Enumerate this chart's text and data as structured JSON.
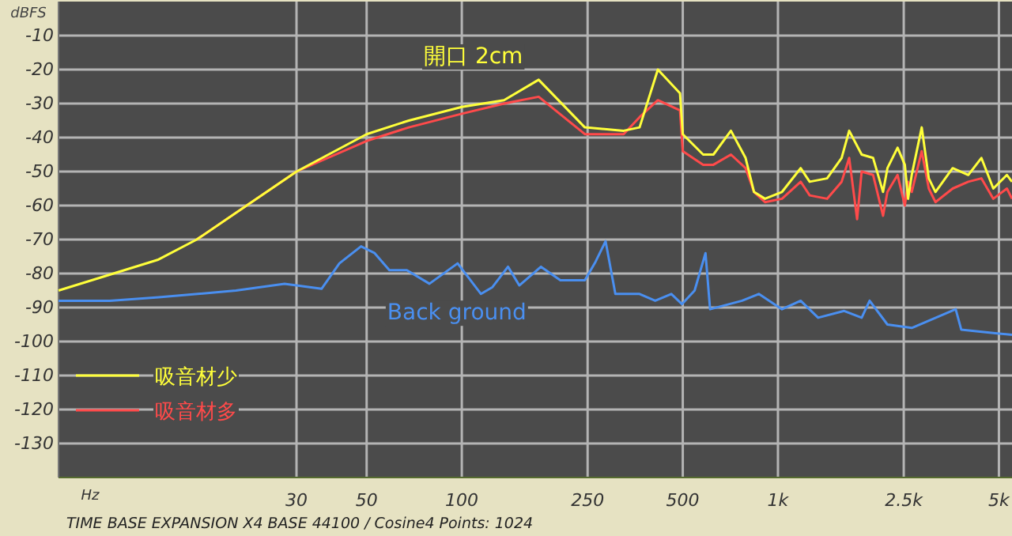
{
  "chart_data": {
    "type": "line",
    "xlabel": "Hz",
    "ylabel": "dBFS",
    "log": "x",
    "grid": true,
    "legend": "bottom left",
    "marker": "none",
    "line_style": "solid",
    "xlim": [
      5.3,
      5500
    ],
    "ylim": [
      -140,
      0
    ],
    "xticks": [
      30,
      50,
      100,
      250,
      500,
      {
        "value": 1000,
        "label": "1k"
      },
      {
        "value": 2500,
        "label": "2.5k"
      },
      {
        "value": 5000,
        "label": "5k"
      }
    ],
    "yticks": [
      -130,
      -120,
      -110,
      -100,
      -90,
      -80,
      -70,
      -60,
      -50,
      -40,
      -30,
      -20,
      -10
    ],
    "annotations": [
      "開口 2cm",
      "TIME BASE EXPANSION X4   BASE 44100 / Cosine4   Points: 1024"
    ],
    "series": [
      {
        "name": "吸音材多",
        "color": "#ff4a4a",
        "x": [
          14.5,
          30,
          50,
          68,
          100,
          136,
          175,
          245,
          325,
          365,
          417,
          490,
          500,
          580,
          625,
          710,
          790,
          840,
          910,
          1030,
          1180,
          1260,
          1430,
          1590,
          1680,
          1780,
          1840,
          2000,
          2150,
          2220,
          2390,
          2520,
          2580,
          2650,
          2850,
          3000,
          3150,
          3570,
          4000,
          4400,
          4800,
          5300,
          5500
        ],
        "values": [
          -70,
          -50,
          -41,
          -37,
          -33,
          -30,
          -28,
          -39,
          -39,
          -34,
          -29,
          -32,
          -44,
          -48,
          -48,
          -45,
          -49,
          -56,
          -59,
          -58,
          -53,
          -57,
          -58,
          -53,
          -46,
          -64,
          -50,
          -51,
          -63,
          -56,
          -51,
          -60,
          -53,
          -56,
          -44,
          -55,
          -59,
          -55,
          -53,
          -52,
          -58,
          -55,
          -58
        ]
      },
      {
        "name": "吸音材少",
        "color": "#ffff3a",
        "x": [
          5.3,
          10.9,
          14.5,
          30,
          50,
          68,
          100,
          136,
          175,
          245,
          325,
          365,
          417,
          490,
          500,
          580,
          625,
          710,
          790,
          840,
          910,
          1030,
          1180,
          1260,
          1430,
          1590,
          1680,
          1840,
          2000,
          2150,
          2220,
          2390,
          2520,
          2580,
          2650,
          2850,
          3000,
          3150,
          3570,
          4000,
          4400,
          4800,
          5300,
          5500
        ],
        "values": [
          -85,
          -76,
          -70,
          -50,
          -39,
          -35,
          -31,
          -29,
          -23,
          -37,
          -38,
          -37,
          -20,
          -27,
          -39,
          -45,
          -45,
          -38,
          -46,
          -56,
          -58,
          -56,
          -49,
          -53,
          -52,
          -46,
          -38,
          -45,
          -46,
          -56,
          -49,
          -43,
          -48,
          -58,
          -51,
          -37,
          -52,
          -56,
          -49,
          -51,
          -46,
          -55,
          -51,
          -53
        ]
      },
      {
        "name": "Back ground",
        "color": "#4a8ff0",
        "x": [
          5.3,
          7.7,
          11,
          19.3,
          27.5,
          36,
          41,
          48,
          53,
          59,
          67,
          79,
          97,
          115,
          125,
          140,
          152,
          178,
          205,
          245,
          265,
          285,
          306,
          365,
          409,
          460,
          497,
          545,
          590,
          610,
          770,
          870,
          1030,
          1180,
          1340,
          1620,
          1840,
          1950,
          2220,
          2650,
          3650,
          3800,
          4800,
          5500
        ],
        "values": [
          -88,
          -88,
          -87,
          -85,
          -83,
          -84.5,
          -77,
          -72,
          -74,
          -79,
          -79,
          -83,
          -77,
          -86,
          -84,
          -78,
          -83.5,
          -78,
          -82,
          -82,
          -76.5,
          -70.5,
          -86,
          -86,
          -88,
          -86,
          -89,
          -85,
          -74,
          -90.5,
          -88,
          -86,
          -90.5,
          -88,
          -93,
          -91,
          -93,
          -88,
          -95,
          -96,
          -90.5,
          -96.5,
          -97.5,
          -98
        ]
      }
    ]
  }
}
